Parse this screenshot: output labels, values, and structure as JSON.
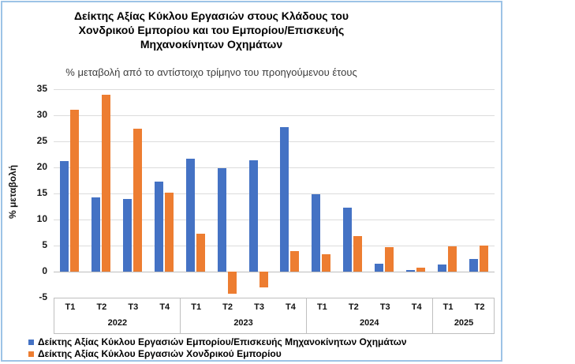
{
  "chart_data": {
    "type": "bar",
    "title_lines": [
      "Δείκτης Αξίας  Κύκλου Εργασιών στους Κλάδους του",
      "Χονδρικού Εμπορίου και του Εμπορίου/Επισκευής",
      "Μηχανοκίνητων Οχημάτων"
    ],
    "subtitle": "% μεταβολή από το αντίστοιχο τρίμηνο του προηγούμενου έτους",
    "ylabel": "% μεταβολή",
    "ylim": [
      -5,
      35
    ],
    "yticks": [
      35,
      30,
      25,
      20,
      15,
      10,
      5,
      0,
      -5
    ],
    "grid": true,
    "legend_position": "bottom-left",
    "categories": [
      "T1",
      "T2",
      "T3",
      "T4",
      "T1",
      "T2",
      "T3",
      "T4",
      "T1",
      "T2",
      "T3",
      "T4",
      "T1",
      "T2"
    ],
    "year_groups": [
      {
        "label": "2022",
        "span": 4
      },
      {
        "label": "2023",
        "span": 4
      },
      {
        "label": "2024",
        "span": 4
      },
      {
        "label": "2025",
        "span": 2
      }
    ],
    "series": [
      {
        "name": "Δείκτης Αξίας Κύκλου Εργασιών Εμπορίου/Επισκευής Μηχανοκίνητων Οχημάτων",
        "color": "#4472C4",
        "values": [
          21.2,
          14.2,
          13.9,
          17.3,
          21.7,
          19.8,
          21.3,
          27.7,
          14.8,
          12.3,
          1.5,
          0.3,
          1.4,
          2.4
        ]
      },
      {
        "name": "Δείκτης Αξίας Κύκλου Εργασιών Χονδρικού Εμπορίου",
        "color": "#ED7D31",
        "values": [
          31.0,
          34.0,
          27.5,
          15.1,
          7.2,
          -4.3,
          -3.0,
          4.0,
          3.4,
          6.8,
          4.7,
          0.7,
          4.9,
          5.0
        ]
      }
    ],
    "colors": {
      "frame_border": "#9DC3E6",
      "gridline": "#DCDCDC",
      "axis_box_border": "#BFBFBF"
    }
  }
}
